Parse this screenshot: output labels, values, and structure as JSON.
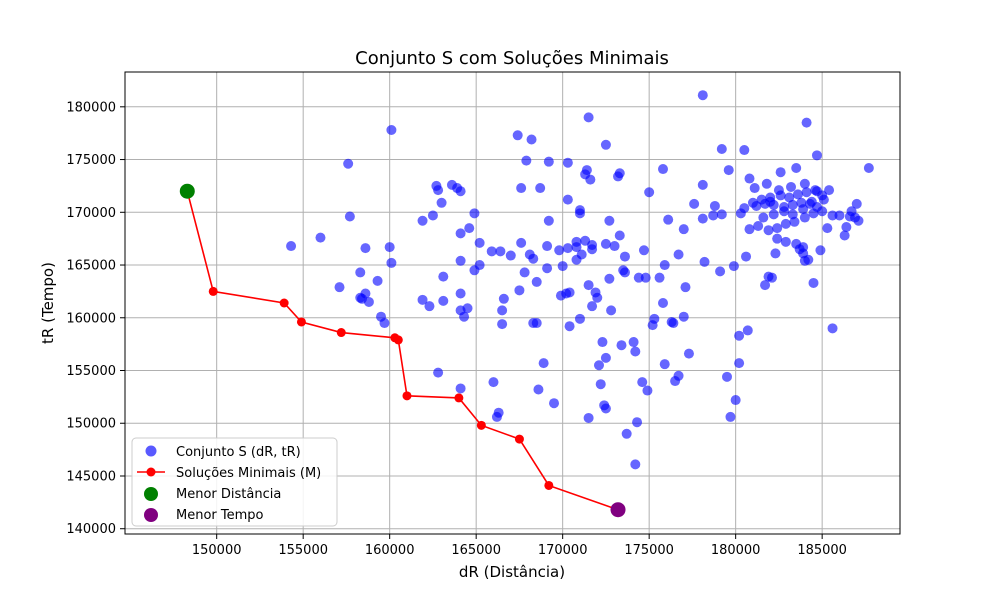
{
  "chart_data": {
    "type": "scatter",
    "title": "Conjunto S com Soluções Minimais",
    "xlabel": "dR (Distância)",
    "ylabel": "tR (Tempo)",
    "xlim": [
      144700,
      189500
    ],
    "ylim": [
      139500,
      183300
    ],
    "x_ticks": [
      "150000",
      "155000",
      "160000",
      "165000",
      "170000",
      "175000",
      "180000",
      "185000"
    ],
    "y_ticks": [
      "140000",
      "145000",
      "150000",
      "155000",
      "160000",
      "165000",
      "170000",
      "175000",
      "180000"
    ],
    "grid": true,
    "legend_position": "lower-left",
    "colors": {
      "scatter": "#0000ff",
      "line": "#ff0000",
      "min_distance": "#008000",
      "min_time": "#800080"
    },
    "series": [
      {
        "name": "Conjunto S (dR, tR)",
        "kind": "scatter",
        "points": [
          [
            154300,
            166800
          ],
          [
            156000,
            167600
          ],
          [
            157100,
            162900
          ],
          [
            157600,
            174600
          ],
          [
            157700,
            169600
          ],
          [
            158300,
            164300
          ],
          [
            158300,
            161900
          ],
          [
            158400,
            161800
          ],
          [
            158600,
            162300
          ],
          [
            158600,
            166600
          ],
          [
            158800,
            161500
          ],
          [
            159300,
            163500
          ],
          [
            159500,
            160100
          ],
          [
            159700,
            159500
          ],
          [
            160000,
            166700
          ],
          [
            160100,
            165200
          ],
          [
            160100,
            177800
          ],
          [
            161900,
            169200
          ],
          [
            161900,
            161700
          ],
          [
            162300,
            161100
          ],
          [
            162500,
            169700
          ],
          [
            162700,
            172500
          ],
          [
            162800,
            172100
          ],
          [
            162800,
            154800
          ],
          [
            163000,
            170900
          ],
          [
            163100,
            163900
          ],
          [
            163100,
            161600
          ],
          [
            163600,
            172600
          ],
          [
            163900,
            172300
          ],
          [
            164100,
            172000
          ],
          [
            164100,
            168000
          ],
          [
            164100,
            165400
          ],
          [
            164100,
            162300
          ],
          [
            164100,
            160700
          ],
          [
            164100,
            153300
          ],
          [
            164300,
            160100
          ],
          [
            164500,
            160900
          ],
          [
            164600,
            168500
          ],
          [
            164900,
            164500
          ],
          [
            164900,
            169900
          ],
          [
            165200,
            167100
          ],
          [
            165200,
            165000
          ],
          [
            165900,
            166300
          ],
          [
            166000,
            153900
          ],
          [
            166200,
            150600
          ],
          [
            166300,
            151000
          ],
          [
            166400,
            166300
          ],
          [
            166500,
            159400
          ],
          [
            166600,
            161800
          ],
          [
            166500,
            160700
          ],
          [
            167000,
            165900
          ],
          [
            167400,
            177300
          ],
          [
            167500,
            162600
          ],
          [
            167600,
            172300
          ],
          [
            167600,
            167100
          ],
          [
            167800,
            164300
          ],
          [
            167900,
            174900
          ],
          [
            168100,
            166000
          ],
          [
            168200,
            176900
          ],
          [
            168300,
            165600
          ],
          [
            168300,
            159500
          ],
          [
            168500,
            163400
          ],
          [
            168500,
            159500
          ],
          [
            168600,
            153200
          ],
          [
            168700,
            172300
          ],
          [
            168900,
            155700
          ],
          [
            169100,
            166800
          ],
          [
            169100,
            164700
          ],
          [
            169200,
            174800
          ],
          [
            169200,
            169200
          ],
          [
            169500,
            151900
          ],
          [
            169800,
            166400
          ],
          [
            169900,
            162100
          ],
          [
            170000,
            164900
          ],
          [
            170200,
            162300
          ],
          [
            170300,
            166600
          ],
          [
            170300,
            174700
          ],
          [
            170300,
            171200
          ],
          [
            170400,
            162400
          ],
          [
            170400,
            159200
          ],
          [
            170800,
            166700
          ],
          [
            170800,
            167200
          ],
          [
            170800,
            165500
          ],
          [
            171000,
            170200
          ],
          [
            171000,
            169900
          ],
          [
            171000,
            159900
          ],
          [
            171100,
            166000
          ],
          [
            171300,
            173600
          ],
          [
            171300,
            167300
          ],
          [
            171400,
            174000
          ],
          [
            171500,
            163100
          ],
          [
            171500,
            150500
          ],
          [
            171500,
            179000
          ],
          [
            171600,
            173100
          ],
          [
            171700,
            166500
          ],
          [
            171700,
            166900
          ],
          [
            171700,
            161100
          ],
          [
            171900,
            162400
          ],
          [
            172000,
            161900
          ],
          [
            172100,
            155500
          ],
          [
            172200,
            153700
          ],
          [
            172300,
            157700
          ],
          [
            172400,
            151700
          ],
          [
            172500,
            151400
          ],
          [
            172500,
            176400
          ],
          [
            172500,
            167000
          ],
          [
            172500,
            156200
          ],
          [
            172700,
            163700
          ],
          [
            172700,
            169200
          ],
          [
            172800,
            160700
          ],
          [
            173000,
            166800
          ],
          [
            173200,
            173400
          ],
          [
            173300,
            173700
          ],
          [
            173300,
            167800
          ],
          [
            173400,
            157400
          ],
          [
            173500,
            164500
          ],
          [
            173600,
            164300
          ],
          [
            173600,
            165800
          ],
          [
            173700,
            149000
          ],
          [
            174100,
            157700
          ],
          [
            174200,
            156800
          ],
          [
            174200,
            146100
          ],
          [
            174300,
            150100
          ],
          [
            174400,
            163800
          ],
          [
            174600,
            153900
          ],
          [
            174700,
            166400
          ],
          [
            174800,
            163800
          ],
          [
            174900,
            153100
          ],
          [
            175000,
            171900
          ],
          [
            175200,
            159300
          ],
          [
            175300,
            159900
          ],
          [
            175600,
            163800
          ],
          [
            175800,
            174100
          ],
          [
            175800,
            161400
          ],
          [
            175900,
            165000
          ],
          [
            175900,
            155600
          ],
          [
            176100,
            169300
          ],
          [
            176300,
            159600
          ],
          [
            176400,
            159500
          ],
          [
            176500,
            154000
          ],
          [
            176700,
            154500
          ],
          [
            176700,
            166000
          ],
          [
            177000,
            168400
          ],
          [
            177000,
            160100
          ],
          [
            177100,
            162900
          ],
          [
            177300,
            156600
          ],
          [
            177600,
            170800
          ],
          [
            178100,
            181100
          ],
          [
            178100,
            172600
          ],
          [
            178100,
            169400
          ],
          [
            178200,
            165300
          ],
          [
            178700,
            169700
          ],
          [
            178800,
            170600
          ],
          [
            179100,
            164400
          ],
          [
            179200,
            176000
          ],
          [
            179200,
            169800
          ],
          [
            179500,
            154400
          ],
          [
            179600,
            174000
          ],
          [
            179700,
            150600
          ],
          [
            179900,
            164900
          ],
          [
            180000,
            152200
          ],
          [
            180200,
            155700
          ],
          [
            180200,
            158300
          ],
          [
            180500,
            175900
          ],
          [
            180600,
            165800
          ],
          [
            180700,
            158800
          ],
          [
            180800,
            173200
          ],
          [
            181700,
            163100
          ],
          [
            181900,
            163900
          ],
          [
            182100,
            163800
          ],
          [
            182300,
            166100
          ],
          [
            182600,
            173800
          ],
          [
            183500,
            174200
          ],
          [
            183700,
            166500
          ],
          [
            183900,
            166100
          ],
          [
            184000,
            165400
          ],
          [
            184100,
            178500
          ],
          [
            184200,
            165500
          ],
          [
            184500,
            163300
          ],
          [
            184700,
            175400
          ],
          [
            184900,
            166400
          ],
          [
            185300,
            168500
          ],
          [
            185600,
            159000
          ],
          [
            185600,
            169700
          ],
          [
            186000,
            169700
          ],
          [
            186300,
            167800
          ],
          [
            186600,
            169600
          ],
          [
            186900,
            169500
          ],
          [
            187100,
            169200
          ],
          [
            187700,
            174200
          ],
          [
            181200,
            170600
          ],
          [
            181700,
            170800
          ],
          [
            182200,
            170700
          ],
          [
            182800,
            170500
          ],
          [
            183300,
            170700
          ],
          [
            183800,
            170900
          ],
          [
            184400,
            171000
          ],
          [
            180500,
            170400
          ],
          [
            181000,
            170900
          ],
          [
            181500,
            171200
          ],
          [
            182000,
            171400
          ],
          [
            182600,
            171600
          ],
          [
            183100,
            171400
          ],
          [
            183600,
            171700
          ],
          [
            184100,
            171900
          ],
          [
            184700,
            172000
          ],
          [
            185100,
            171200
          ],
          [
            180800,
            168400
          ],
          [
            181300,
            168700
          ],
          [
            181900,
            168300
          ],
          [
            182400,
            168500
          ],
          [
            182900,
            168900
          ],
          [
            183400,
            169100
          ],
          [
            184000,
            169500
          ],
          [
            184500,
            169900
          ],
          [
            185000,
            170100
          ],
          [
            181600,
            169500
          ],
          [
            182200,
            169800
          ],
          [
            182800,
            170100
          ],
          [
            183300,
            169800
          ],
          [
            183900,
            170300
          ],
          [
            182400,
            167500
          ],
          [
            182900,
            167200
          ],
          [
            183500,
            167000
          ],
          [
            183900,
            166700
          ],
          [
            181100,
            172300
          ],
          [
            181800,
            172700
          ],
          [
            182500,
            172100
          ],
          [
            183200,
            172400
          ],
          [
            184000,
            172700
          ],
          [
            184600,
            172100
          ],
          [
            185000,
            171600
          ],
          [
            186400,
            168600
          ],
          [
            186700,
            170100
          ],
          [
            187000,
            170800
          ],
          [
            185400,
            172100
          ],
          [
            184300,
            170800
          ],
          [
            184700,
            170500
          ],
          [
            182000,
            171000
          ],
          [
            180300,
            169900
          ]
        ]
      },
      {
        "name": "Soluções Minimais (M)",
        "kind": "line",
        "points": [
          [
            148300,
            172000
          ],
          [
            149800,
            162500
          ],
          [
            153900,
            161400
          ],
          [
            154900,
            159600
          ],
          [
            157200,
            158600
          ],
          [
            160300,
            158100
          ],
          [
            160500,
            157900
          ],
          [
            161000,
            152600
          ],
          [
            164000,
            152400
          ],
          [
            165300,
            149800
          ],
          [
            167500,
            148500
          ],
          [
            169200,
            144100
          ],
          [
            173200,
            141800
          ]
        ]
      },
      {
        "name": "Menor Distância",
        "kind": "highlight",
        "points": [
          [
            148300,
            172000
          ]
        ]
      },
      {
        "name": "Menor Tempo",
        "kind": "highlight",
        "points": [
          [
            173200,
            141800
          ]
        ]
      }
    ]
  }
}
